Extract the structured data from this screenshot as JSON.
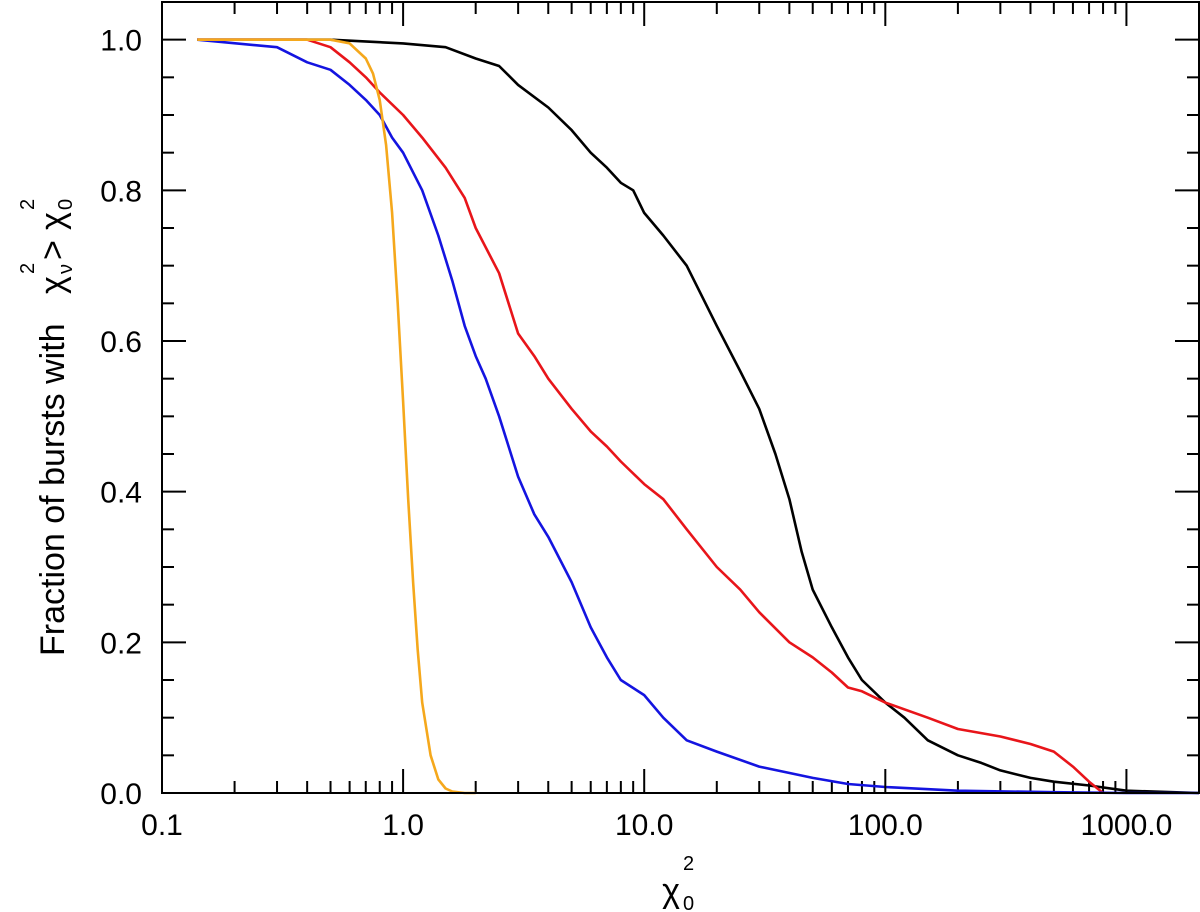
{
  "chart_data": {
    "type": "line",
    "title": "",
    "xscale": "log",
    "xlim": [
      0.1,
      2000
    ],
    "ylim": [
      0.0,
      1.05
    ],
    "grid": false,
    "legend": "none",
    "xlabel_parts": {
      "symbol": "χ",
      "sup": "2",
      "sub": "0"
    },
    "ylabel_parts": {
      "prefix": "Fraction of bursts with",
      "lhs_symbol": "χ",
      "lhs_sup": "2",
      "lhs_sub": "ν",
      "op": ">",
      "rhs_symbol": "χ",
      "rhs_sup": "2",
      "rhs_sub": "0"
    },
    "x_ticks": [
      {
        "value": 0.1,
        "label": "0.1"
      },
      {
        "value": 1,
        "label": "1.0"
      },
      {
        "value": 10,
        "label": "10.0"
      },
      {
        "value": 100,
        "label": "100.0"
      },
      {
        "value": 1000,
        "label": "1000.0"
      }
    ],
    "y_ticks": [
      {
        "value": 0.0,
        "label": "0.0"
      },
      {
        "value": 0.2,
        "label": "0.2"
      },
      {
        "value": 0.4,
        "label": "0.4"
      },
      {
        "value": 0.6,
        "label": "0.6"
      },
      {
        "value": 0.8,
        "label": "0.8"
      },
      {
        "value": 1.0,
        "label": "1.0"
      }
    ],
    "series": [
      {
        "color": "#000000",
        "x": [
          0.14,
          0.5,
          1.0,
          1.5,
          2.0,
          2.5,
          3.0,
          4.0,
          5.0,
          6.0,
          7.0,
          8.0,
          9.0,
          10.0,
          12.0,
          15.0,
          20.0,
          25.0,
          30.0,
          35.0,
          40.0,
          45.0,
          50.0,
          60.0,
          70.0,
          80.0,
          100.0,
          120.0,
          150.0,
          200.0,
          250.0,
          300.0,
          400.0,
          500.0,
          700.0,
          1000.0,
          2000.0
        ],
        "y": [
          1.0,
          1.0,
          0.995,
          0.99,
          0.975,
          0.965,
          0.94,
          0.91,
          0.88,
          0.85,
          0.83,
          0.81,
          0.8,
          0.77,
          0.74,
          0.7,
          0.62,
          0.56,
          0.51,
          0.45,
          0.39,
          0.32,
          0.27,
          0.22,
          0.18,
          0.15,
          0.12,
          0.1,
          0.07,
          0.05,
          0.04,
          0.03,
          0.02,
          0.015,
          0.01,
          0.003,
          0.0
        ]
      },
      {
        "color": "#e8151a",
        "x": [
          0.14,
          0.4,
          0.5,
          0.6,
          0.7,
          0.8,
          1.0,
          1.2,
          1.5,
          1.8,
          2.0,
          2.5,
          3.0,
          3.5,
          4.0,
          5.0,
          6.0,
          7.0,
          8.0,
          10.0,
          12.0,
          15.0,
          20.0,
          25.0,
          30.0,
          40.0,
          50.0,
          60.0,
          70.0,
          80.0,
          100.0,
          150.0,
          200.0,
          300.0,
          400.0,
          500.0,
          600.0,
          700.0,
          800.0
        ],
        "y": [
          1.0,
          1.0,
          0.99,
          0.97,
          0.95,
          0.93,
          0.9,
          0.87,
          0.83,
          0.79,
          0.75,
          0.69,
          0.61,
          0.58,
          0.55,
          0.51,
          0.48,
          0.46,
          0.44,
          0.41,
          0.39,
          0.35,
          0.3,
          0.27,
          0.24,
          0.2,
          0.18,
          0.16,
          0.14,
          0.135,
          0.12,
          0.1,
          0.085,
          0.075,
          0.065,
          0.055,
          0.035,
          0.015,
          0.0
        ]
      },
      {
        "color": "#1414e0",
        "x": [
          0.14,
          0.3,
          0.4,
          0.5,
          0.6,
          0.7,
          0.8,
          0.9,
          1.0,
          1.2,
          1.4,
          1.6,
          1.8,
          2.0,
          2.2,
          2.5,
          3.0,
          3.5,
          4.0,
          5.0,
          6.0,
          7.0,
          8.0,
          10.0,
          12.0,
          15.0,
          20.0,
          30.0,
          50.0,
          70.0,
          100.0,
          200.0,
          500.0,
          1000.0,
          2000.0
        ],
        "y": [
          1.0,
          0.99,
          0.97,
          0.96,
          0.94,
          0.92,
          0.9,
          0.87,
          0.85,
          0.8,
          0.74,
          0.68,
          0.62,
          0.58,
          0.55,
          0.5,
          0.42,
          0.37,
          0.34,
          0.28,
          0.22,
          0.18,
          0.15,
          0.13,
          0.1,
          0.07,
          0.055,
          0.035,
          0.02,
          0.012,
          0.008,
          0.003,
          0.001,
          0.0,
          0.0
        ]
      },
      {
        "color": "#f5a81c",
        "x": [
          0.14,
          0.3,
          0.5,
          0.6,
          0.7,
          0.75,
          0.8,
          0.85,
          0.9,
          0.95,
          1.0,
          1.05,
          1.1,
          1.15,
          1.2,
          1.3,
          1.4,
          1.5,
          1.6,
          1.8,
          2.0
        ],
        "y": [
          1.0,
          1.0,
          1.0,
          0.995,
          0.975,
          0.955,
          0.92,
          0.86,
          0.77,
          0.65,
          0.52,
          0.39,
          0.28,
          0.19,
          0.12,
          0.05,
          0.018,
          0.006,
          0.002,
          0.0,
          0.0
        ]
      }
    ]
  }
}
